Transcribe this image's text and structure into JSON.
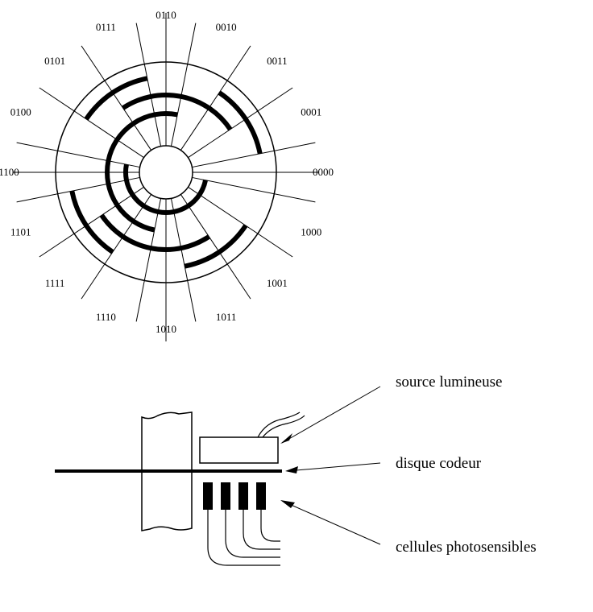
{
  "encoder_disk": {
    "sector_codes": [
      "0000",
      "0001",
      "0011",
      "0010",
      "0110",
      "0111",
      "0101",
      "0100",
      "1100",
      "1101",
      "1111",
      "1110",
      "1010",
      "1011",
      "1001",
      "1000"
    ]
  },
  "side_view": {
    "light_source_label": "source lumineuse",
    "encoder_disk_label": "disque codeur",
    "photocells_label": "cellules photosensibles"
  },
  "colors": {
    "ink": "#000000",
    "background": "#ffffff"
  }
}
